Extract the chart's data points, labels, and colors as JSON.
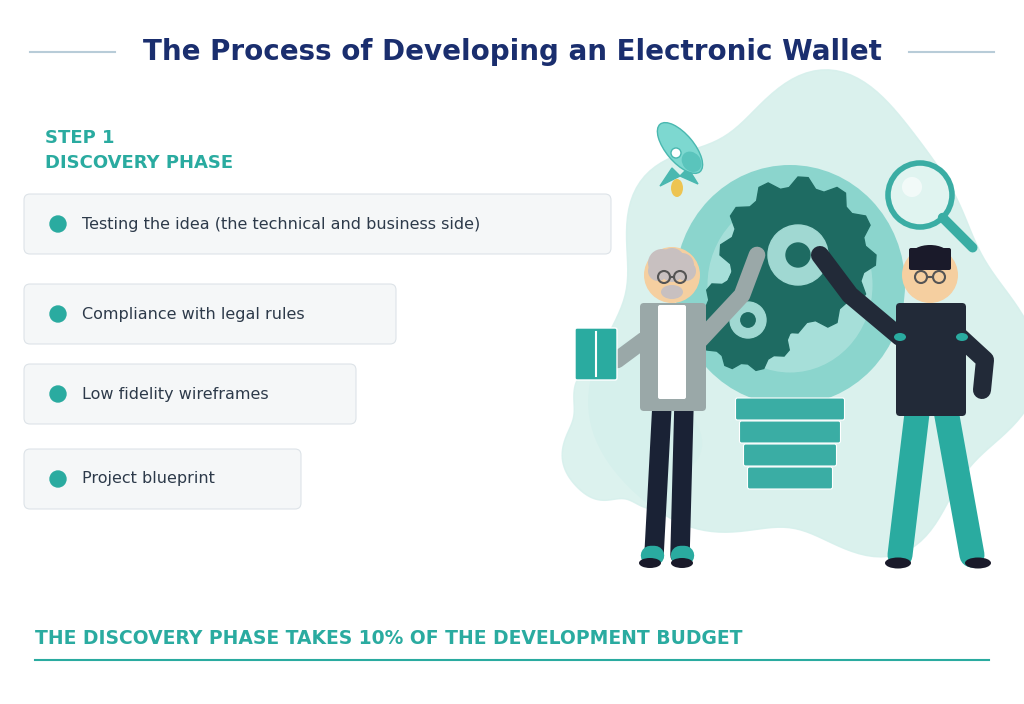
{
  "title": "The Process of Developing an Electronic Wallet",
  "title_color": "#1a2e6e",
  "title_fontsize": 20,
  "bg_color": "#ffffff",
  "step_label": "STEP 1",
  "phase_label": "DISCOVERY PHASE",
  "step_color": "#2aaba0",
  "bullet_items": [
    "Testing the idea (the technical and business side)",
    "Compliance with legal rules",
    "Low fidelity wireframes",
    "Project blueprint"
  ],
  "bullet_color": "#2aaba0",
  "bullet_text_color": "#2d3a4a",
  "card_bg": "#f5f7f8",
  "card_border": "#dde3e8",
  "footer_text": "THE DISCOVERY PHASE TAKES 10% OF THE DEVELOPMENT BUDGET",
  "footer_color": "#2aaba0",
  "footer_fontsize": 13.5,
  "divider_color": "#2aaba0",
  "title_line_color": "#b8ccd8",
  "blob_color": "#d6f0ec",
  "bulb_outer": "#7dd0c8",
  "bulb_inner": "#b2e4df",
  "bulb_base": "#3aada4",
  "gear_color": "#1e6b62",
  "gear_hole": "#a0d8d2"
}
